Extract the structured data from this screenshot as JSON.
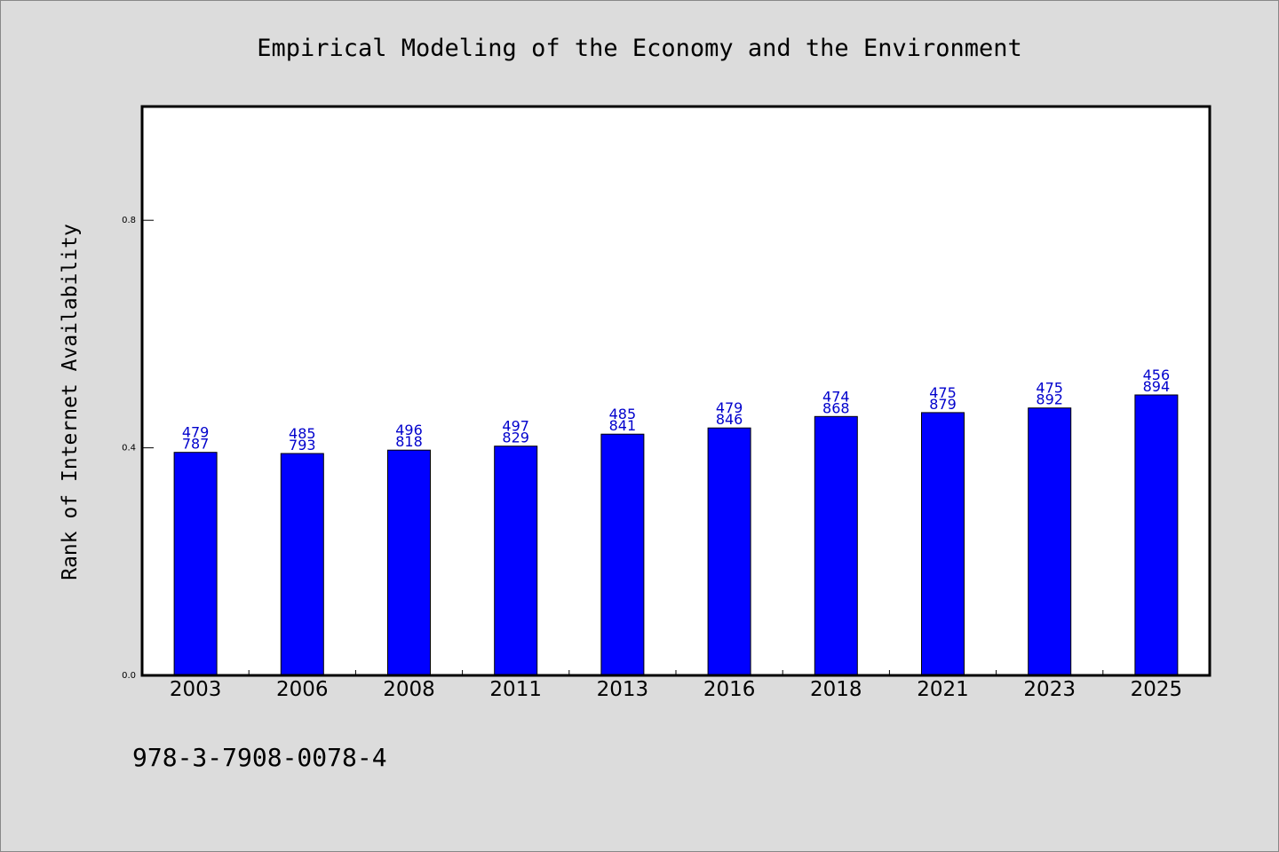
{
  "chart_data": {
    "type": "bar",
    "title": "Empirical Modeling of the Economy and the Environment",
    "xlabel": "",
    "ylabel": "Rank of Internet Availability",
    "categories": [
      "2003",
      "2006",
      "2008",
      "2011",
      "2013",
      "2016",
      "2018",
      "2021",
      "2023",
      "2025"
    ],
    "values": [
      0.392,
      0.39,
      0.396,
      0.403,
      0.424,
      0.435,
      0.455,
      0.462,
      0.47,
      0.493
    ],
    "data_labels": [
      [
        "479",
        "787"
      ],
      [
        "485",
        "793"
      ],
      [
        "496",
        "818"
      ],
      [
        "497",
        "829"
      ],
      [
        "485",
        "841"
      ],
      [
        "479",
        "846"
      ],
      [
        "474",
        "868"
      ],
      [
        "475",
        "879"
      ],
      [
        "475",
        "892"
      ],
      [
        "456",
        "894"
      ]
    ],
    "yticks": [
      "0.0",
      "0.4",
      "0.8"
    ],
    "ylim": [
      0,
      1.0
    ],
    "grid": false,
    "legend": "none",
    "bar_color": "#0000ff",
    "label_color": "#0000cc",
    "footer": "978-3-7908-0078-4"
  }
}
